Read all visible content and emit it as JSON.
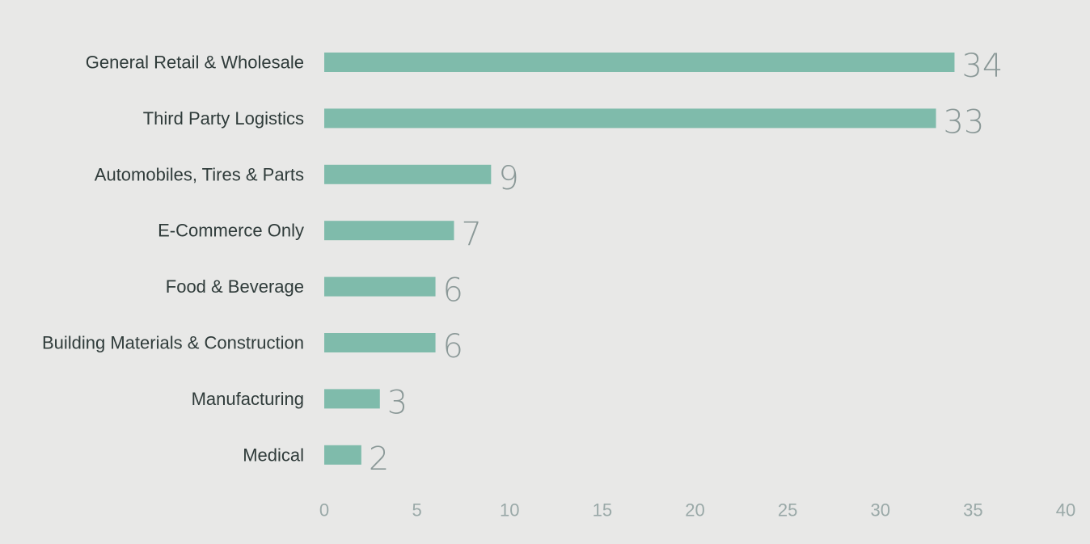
{
  "chart_data": {
    "type": "bar",
    "orientation": "horizontal",
    "title": "",
    "xlabel": "",
    "ylabel": "",
    "categories": [
      "General Retail & Wholesale",
      "Third Party Logistics",
      "Automobiles, Tires & Parts",
      "E-Commerce Only",
      "Food & Beverage",
      "Building Materials & Construction",
      "Manufacturing",
      "Medical"
    ],
    "values": [
      34,
      33,
      9,
      7,
      6,
      6,
      3,
      2
    ],
    "xlim": [
      0,
      40
    ],
    "xticks": [
      0,
      5,
      10,
      15,
      20,
      25,
      30,
      35,
      40
    ],
    "grid": false,
    "legend": "none",
    "colors": {
      "bar": "#7fbbab",
      "background": "#e8e8e7",
      "category_text": "#2f3b3a",
      "value_text": "#8a9897",
      "tick_text": "#9aa9a8"
    }
  }
}
